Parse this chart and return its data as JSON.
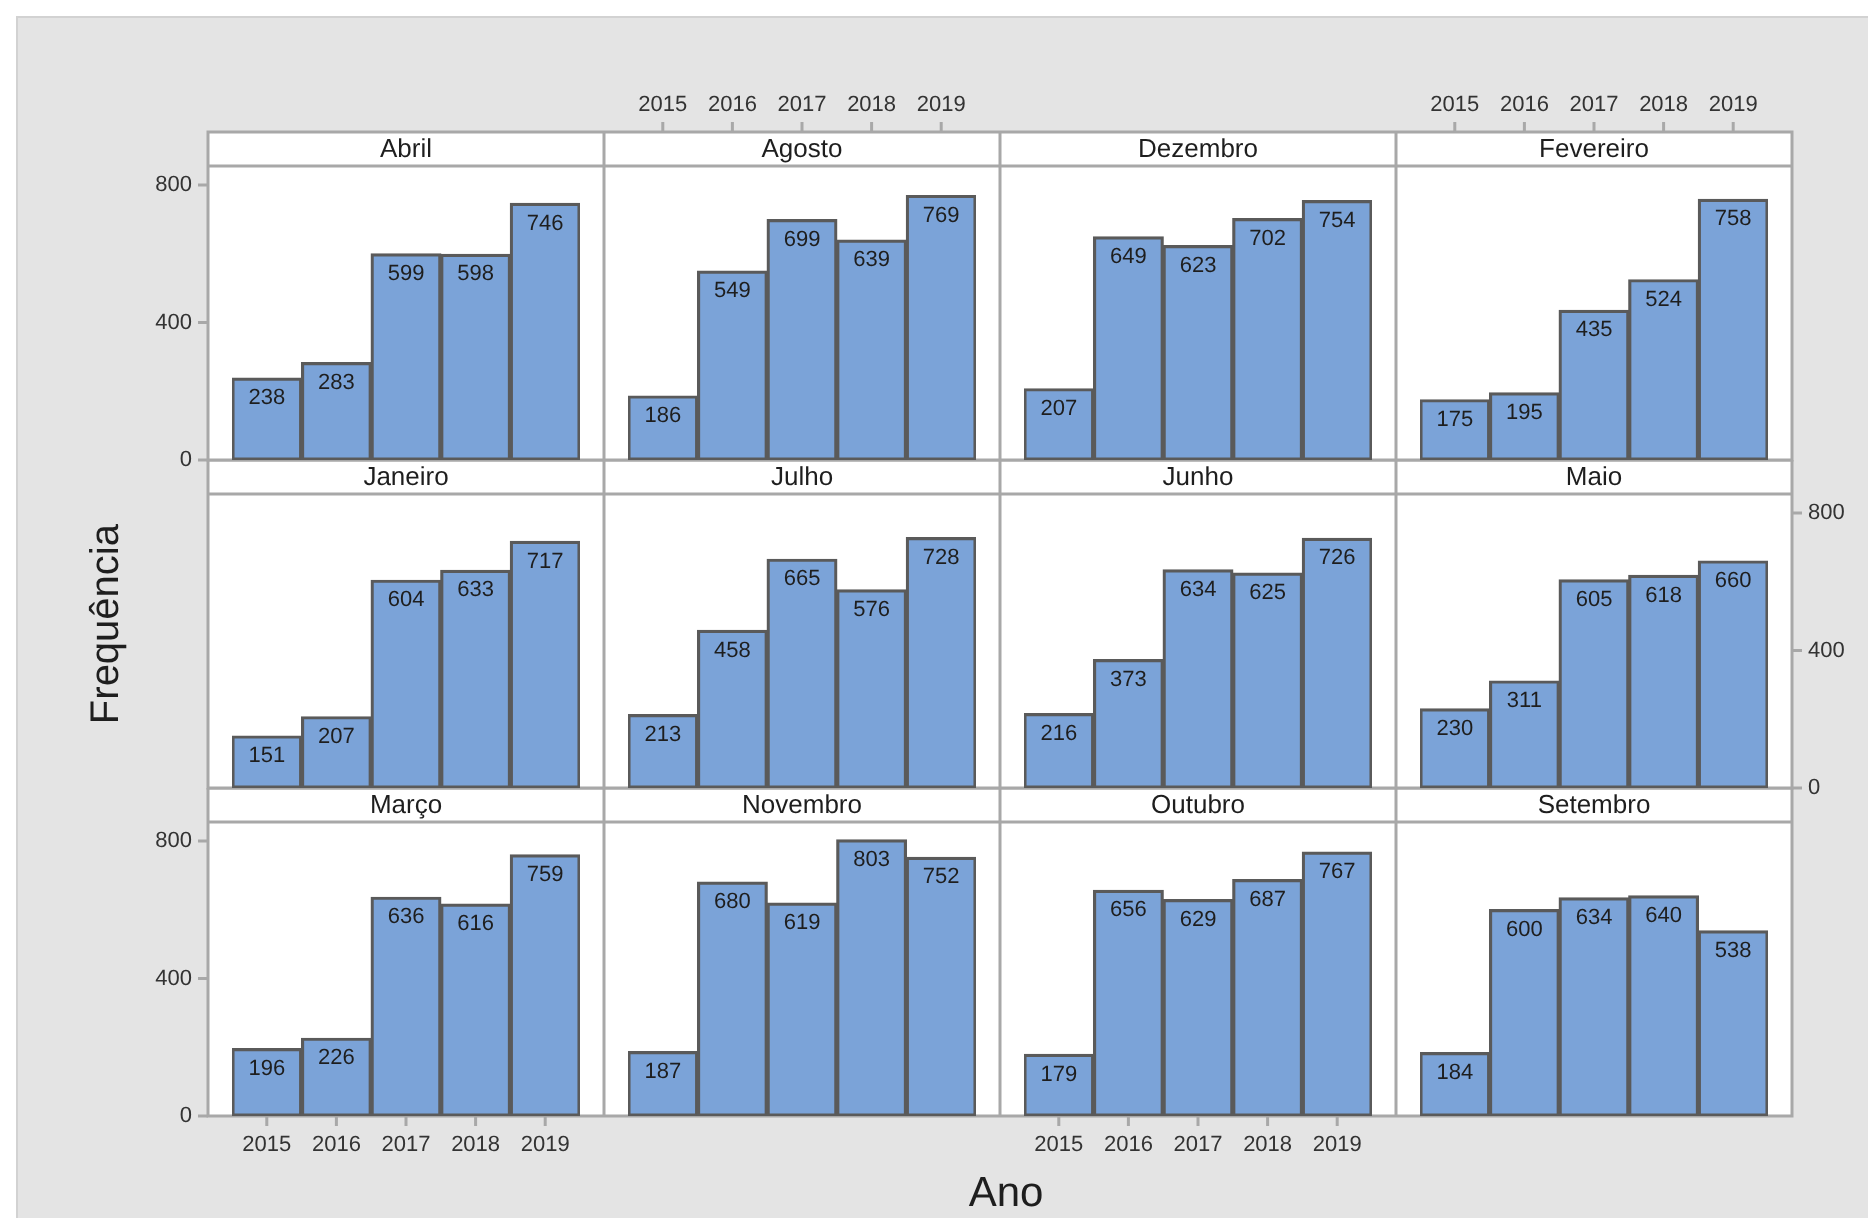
{
  "chart_data": [
    {
      "type": "bar",
      "title": "Abril",
      "categories": [
        "2015",
        "2016",
        "2017",
        "2018",
        "2019"
      ],
      "values": [
        238,
        283,
        599,
        598,
        746
      ],
      "color": "#7ba3d8",
      "ylim": [
        0,
        855
      ],
      "yticks": [
        0,
        400,
        800
      ],
      "data_labels": true,
      "tick_labels": "y"
    },
    {
      "type": "bar",
      "title": "Agosto",
      "categories": [
        "2015",
        "2016",
        "2017",
        "2018",
        "2019"
      ],
      "values": [
        186,
        549,
        699,
        639,
        769
      ],
      "color": "#7ba3d8",
      "ylim": [
        0,
        855
      ],
      "yticks": [
        0,
        400,
        800
      ],
      "data_labels": true,
      "tick_labels": "x"
    },
    {
      "type": "bar",
      "title": "Dezembro",
      "categories": [
        "2015",
        "2016",
        "2017",
        "2018",
        "2019"
      ],
      "values": [
        207,
        649,
        623,
        702,
        754
      ],
      "color": "#7ba3d8",
      "ylim": [
        0,
        855
      ],
      "yticks": [
        0,
        400,
        800
      ],
      "data_labels": true,
      "tick_labels": false
    },
    {
      "type": "bar",
      "title": "Fevereiro",
      "categories": [
        "2015",
        "2016",
        "2017",
        "2018",
        "2019"
      ],
      "values": [
        175,
        195,
        435,
        524,
        758
      ],
      "color": "#7ba3d8",
      "ylim": [
        0,
        855
      ],
      "yticks": [
        0,
        400,
        800
      ],
      "data_labels": true,
      "tick_labels": "x"
    },
    {
      "type": "bar",
      "title": "Janeiro",
      "ylabel": "Frequência",
      "categories": [
        "2015",
        "2016",
        "2017",
        "2018",
        "2019"
      ],
      "values": [
        151,
        207,
        604,
        633,
        717
      ],
      "color": "#7ba3d8",
      "ylim": [
        0,
        855
      ],
      "yticks": [
        0,
        400,
        800
      ],
      "data_labels": true,
      "tick_labels": false
    },
    {
      "type": "bar",
      "title": "Julho",
      "categories": [
        "2015",
        "2016",
        "2017",
        "2018",
        "2019"
      ],
      "values": [
        213,
        458,
        665,
        576,
        728
      ],
      "color": "#7ba3d8",
      "ylim": [
        0,
        855
      ],
      "yticks": [
        0,
        400,
        800
      ],
      "data_labels": true,
      "tick_labels": false
    },
    {
      "type": "bar",
      "title": "Junho",
      "categories": [
        "2015",
        "2016",
        "2017",
        "2018",
        "2019"
      ],
      "values": [
        216,
        373,
        634,
        625,
        726
      ],
      "color": "#7ba3d8",
      "ylim": [
        0,
        855
      ],
      "yticks": [
        0,
        400,
        800
      ],
      "data_labels": true,
      "tick_labels": false
    },
    {
      "type": "bar",
      "title": "Maio",
      "categories": [
        "2015",
        "2016",
        "2017",
        "2018",
        "2019"
      ],
      "values": [
        230,
        311,
        605,
        618,
        660
      ],
      "color": "#7ba3d8",
      "ylim": [
        0,
        855
      ],
      "yticks": [
        0,
        400,
        800
      ],
      "data_labels": true,
      "tick_labels": "y"
    },
    {
      "type": "bar",
      "title": "Março",
      "categories": [
        "2015",
        "2016",
        "2017",
        "2018",
        "2019"
      ],
      "values": [
        196,
        226,
        636,
        616,
        759
      ],
      "color": "#7ba3d8",
      "ylim": [
        0,
        855
      ],
      "yticks": [
        0,
        400,
        800
      ],
      "data_labels": true
    },
    {
      "type": "bar",
      "title": "Novembro",
      "categories": [
        "2015",
        "2016",
        "2017",
        "2018",
        "2019"
      ],
      "values": [
        187,
        680,
        619,
        803,
        752
      ],
      "color": "#7ba3d8",
      "ylim": [
        0,
        855
      ],
      "yticks": [
        0,
        400,
        800
      ],
      "data_labels": true,
      "tick_labels": false
    },
    {
      "type": "bar",
      "title": "Outubro",
      "xlabel": "Ano",
      "categories": [
        "2015",
        "2016",
        "2017",
        "2018",
        "2019"
      ],
      "values": [
        179,
        656,
        629,
        687,
        767
      ],
      "color": "#7ba3d8",
      "ylim": [
        0,
        855
      ],
      "yticks": [
        0,
        400,
        800
      ],
      "data_labels": true,
      "tick_labels": "x"
    },
    {
      "type": "bar",
      "title": "Setembro",
      "categories": [
        "2015",
        "2016",
        "2017",
        "2018",
        "2019"
      ],
      "values": [
        184,
        600,
        634,
        640,
        538
      ],
      "color": "#7ba3d8",
      "ylim": [
        0,
        855
      ],
      "yticks": [
        0,
        400,
        800
      ],
      "data_labels": true,
      "tick_labels": false
    }
  ]
}
